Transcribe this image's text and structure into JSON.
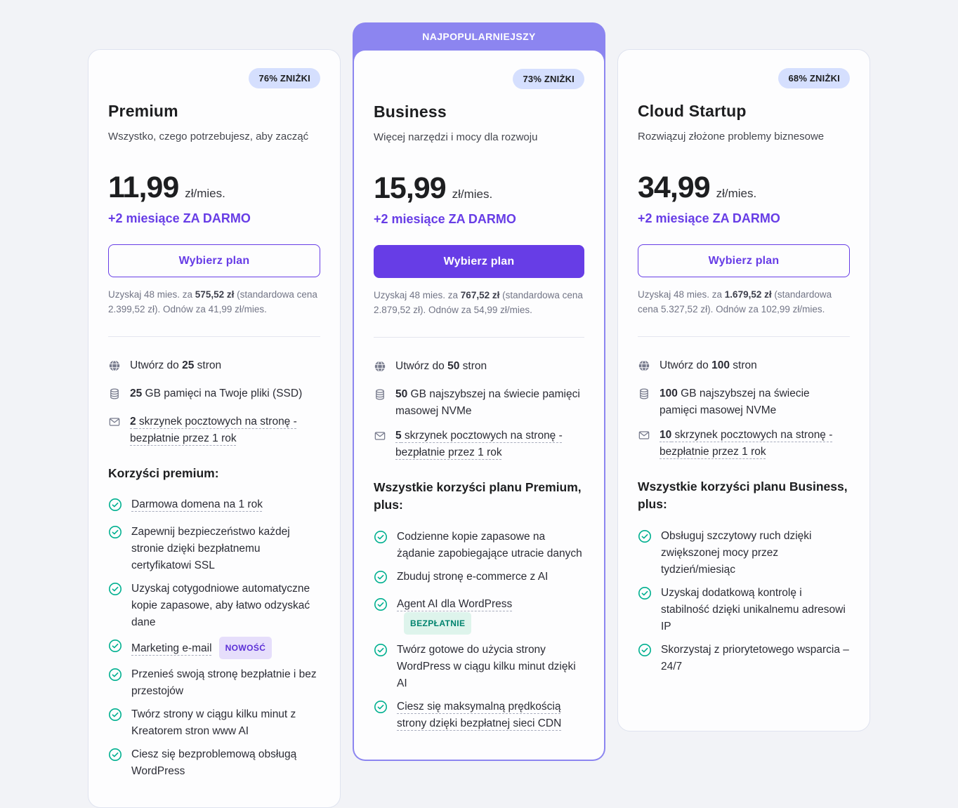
{
  "page": {
    "background": "#f2f3f7"
  },
  "colors": {
    "primary_purple": "#673de6",
    "banner_purple": "#8c85f0",
    "discount_badge_bg": "#d5dffe",
    "check_green": "#00b090",
    "new_badge_bg": "#e6defb",
    "new_badge_text": "#5b2fd6",
    "free_badge_bg": "#def4ec",
    "free_badge_text": "#00836e"
  },
  "plans": [
    {
      "id": "premium",
      "popular": false,
      "discount_badge": "76% ZNIŻKI",
      "name": "Premium",
      "tagline": "Wszystko, czego potrzebujesz, aby zacząć",
      "price": "11,99",
      "price_unit": "zł/mies.",
      "promo": "+2 miesiące ZA DARMO",
      "cta_label": "Wybierz plan",
      "cta_variant": "outline",
      "fine_print": [
        {
          "t": "Uzyskaj 48 mies. za "
        },
        {
          "t": "575,52 zł",
          "b": true
        },
        {
          "t": " (standardowa cena 2.399,52 zł). Odnów za 41,99 zł/mies."
        }
      ],
      "features": [
        {
          "icon": "globe-icon",
          "segments": [
            {
              "t": "Utwórz do "
            },
            {
              "t": "25",
              "b": true
            },
            {
              "t": " stron"
            }
          ]
        },
        {
          "icon": "storage-icon",
          "segments": [
            {
              "t": "25",
              "b": true
            },
            {
              "t": " GB pamięci na Twoje pliki (SSD)"
            }
          ]
        },
        {
          "icon": "mail-icon",
          "segments": [
            {
              "t": "2",
              "b": true,
              "d": true
            },
            {
              "t": " skrzynek pocztowych na stronę - bezpłatnie przez 1 rok",
              "d": true
            }
          ]
        }
      ],
      "benefits_heading": "Korzyści premium:",
      "benefits": [
        {
          "text": "Darmowa domena na 1 rok",
          "dashed": true
        },
        {
          "text": "Zapewnij bezpieczeństwo każdej stronie dzięki bezpłatnemu certyfikatowi SSL"
        },
        {
          "text": "Uzyskaj cotygodniowe automatyczne kopie zapasowe, aby łatwo odzyskać dane"
        },
        {
          "text": "Marketing e-mail",
          "dashed": true,
          "badge": {
            "label": "NOWOŚĆ",
            "style": "purple"
          }
        },
        {
          "text": "Przenieś swoją stronę bezpłatnie i bez przestojów"
        },
        {
          "text": "Twórz strony w ciągu kilku minut z Kreatorem stron www AI"
        },
        {
          "text": "Ciesz się bezproblemową obsługą WordPress"
        }
      ]
    },
    {
      "id": "business",
      "popular": true,
      "banner": "NAJPOPULARNIEJSZY",
      "discount_badge": "73% ZNIŻKI",
      "name": "Business",
      "tagline": "Więcej narzędzi i mocy dla rozwoju",
      "price": "15,99",
      "price_unit": "zł/mies.",
      "promo": "+2 miesiące ZA DARMO",
      "cta_label": "Wybierz plan",
      "cta_variant": "filled",
      "fine_print": [
        {
          "t": "Uzyskaj 48 mies. za "
        },
        {
          "t": "767,52 zł",
          "b": true
        },
        {
          "t": " (standardowa cena 2.879,52 zł). Odnów za 54,99 zł/mies."
        }
      ],
      "features": [
        {
          "icon": "globe-icon",
          "segments": [
            {
              "t": "Utwórz do "
            },
            {
              "t": "50",
              "b": true
            },
            {
              "t": " stron"
            }
          ]
        },
        {
          "icon": "storage-icon",
          "segments": [
            {
              "t": "50",
              "b": true
            },
            {
              "t": " GB najszybszej na świecie pamięci masowej NVMe"
            }
          ]
        },
        {
          "icon": "mail-icon",
          "segments": [
            {
              "t": "5",
              "b": true,
              "d": true
            },
            {
              "t": " skrzynek pocztowych na stronę - bezpłatnie przez 1 rok",
              "d": true
            }
          ]
        }
      ],
      "benefits_heading": "Wszystkie korzyści planu Premium, plus:",
      "benefits": [
        {
          "text": "Codzienne kopie zapasowe na żądanie zapobiegające utracie danych"
        },
        {
          "text": "Zbuduj stronę e-commerce z AI"
        },
        {
          "text": "Agent AI dla WordPress",
          "dashed": true,
          "badge": {
            "label": "BEZPŁATNIE",
            "style": "green"
          }
        },
        {
          "text": "Twórz gotowe do użycia strony WordPress w ciągu kilku minut dzięki AI"
        },
        {
          "text": "Ciesz się maksymalną prędkością strony dzięki bezpłatnej sieci CDN",
          "dashed": true
        }
      ]
    },
    {
      "id": "cloud-startup",
      "popular": false,
      "discount_badge": "68% ZNIŻKI",
      "name": "Cloud Startup",
      "tagline": "Rozwiązuj złożone problemy biznesowe",
      "price": "34,99",
      "price_unit": "zł/mies.",
      "promo": "+2 miesiące ZA DARMO",
      "cta_label": "Wybierz plan",
      "cta_variant": "outline",
      "fine_print": [
        {
          "t": "Uzyskaj 48 mies. za "
        },
        {
          "t": "1.679,52 zł",
          "b": true
        },
        {
          "t": " (standardowa cena 5.327,52 zł). Odnów za 102,99 zł/mies."
        }
      ],
      "features": [
        {
          "icon": "globe-icon",
          "segments": [
            {
              "t": "Utwórz do "
            },
            {
              "t": "100",
              "b": true
            },
            {
              "t": " stron"
            }
          ]
        },
        {
          "icon": "storage-icon",
          "segments": [
            {
              "t": "100",
              "b": true
            },
            {
              "t": " GB najszybszej na świecie pamięci masowej NVMe"
            }
          ]
        },
        {
          "icon": "mail-icon",
          "segments": [
            {
              "t": "10",
              "b": true,
              "d": true
            },
            {
              "t": " skrzynek pocztowych na stronę - bezpłatnie przez 1 rok",
              "d": true
            }
          ]
        }
      ],
      "benefits_heading": "Wszystkie korzyści planu Business, plus:",
      "benefits": [
        {
          "text": "Obsługuj szczytowy ruch dzięki zwiększonej mocy przez tydzień/miesiąc"
        },
        {
          "text": "Uzyskaj dodatkową kontrolę i stabilność dzięki unikalnemu adresowi IP"
        },
        {
          "text": "Skorzystaj z priorytetowego wsparcia – 24/7"
        }
      ]
    }
  ]
}
